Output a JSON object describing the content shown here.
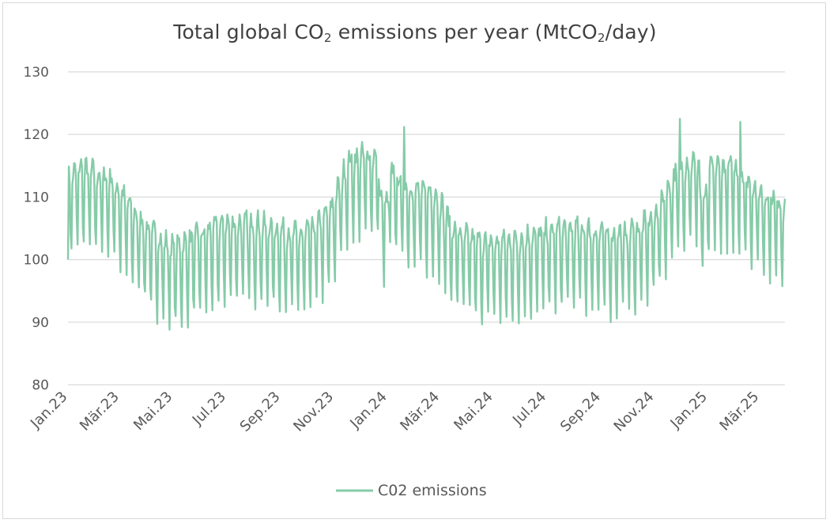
{
  "chart_data": {
    "type": "line",
    "title_parts": {
      "a": "Total global CO",
      "sub1": "2",
      "b": " emissions per year (MtCO",
      "sub2": "2",
      "c": "/day)"
    },
    "title": "Total global CO2 emissions per year (MtCO2/day)",
    "xlabel": "",
    "ylabel": "",
    "ylim": [
      80,
      130
    ],
    "yticks": [
      "80",
      "90",
      "100",
      "110",
      "120",
      "130"
    ],
    "grid": true,
    "legend_position": "bottom",
    "x_start": "2023-01-01",
    "x_end": "2025-03-31",
    "xtick_labels": [
      "Jan.23",
      "Mär.23",
      "Mai.23",
      "Jul.23",
      "Sep.23",
      "Nov.23",
      "Jan.24",
      "Mär.24",
      "Mai.24",
      "Jul.24",
      "Sep.24",
      "Nov.24",
      "Jan.25",
      "Mär.25"
    ],
    "xtick_day_offsets": [
      0,
      59,
      120,
      181,
      243,
      304,
      365,
      425,
      486,
      547,
      609,
      670,
      731,
      790
    ],
    "series": [
      {
        "name": "C02 emissions",
        "color": "#86cba8",
        "frequency": "daily (smoothed reading, weekly cycle)",
        "baseline_keypoints_day_value": [
          [
            0,
            108
          ],
          [
            15,
            110
          ],
          [
            30,
            109
          ],
          [
            50,
            108
          ],
          [
            60,
            106
          ],
          [
            80,
            102
          ],
          [
            100,
            99
          ],
          [
            120,
            97
          ],
          [
            150,
            99
          ],
          [
            180,
            101
          ],
          [
            210,
            101
          ],
          [
            240,
            100
          ],
          [
            270,
            99
          ],
          [
            300,
            103
          ],
          [
            320,
            111
          ],
          [
            345,
            112
          ],
          [
            365,
            110
          ],
          [
            385,
            107
          ],
          [
            405,
            106
          ],
          [
            420,
            106
          ],
          [
            440,
            100
          ],
          [
            470,
            98
          ],
          [
            500,
            98
          ],
          [
            530,
            99
          ],
          [
            560,
            100
          ],
          [
            590,
            100
          ],
          [
            620,
            99
          ],
          [
            650,
            100
          ],
          [
            670,
            102
          ],
          [
            690,
            108
          ],
          [
            710,
            111
          ],
          [
            731,
            110
          ],
          [
            760,
            110
          ],
          [
            790,
            106
          ],
          [
            819,
            104
          ]
        ],
        "weekly_amplitude": 6,
        "min": 88.8,
        "max": 122.5
      }
    ]
  }
}
